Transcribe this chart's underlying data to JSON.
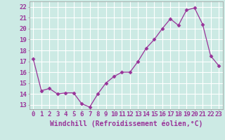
{
  "x": [
    0,
    1,
    2,
    3,
    4,
    5,
    6,
    7,
    8,
    9,
    10,
    11,
    12,
    13,
    14,
    15,
    16,
    17,
    18,
    19,
    20,
    21,
    22,
    23
  ],
  "y": [
    17.2,
    14.3,
    14.5,
    14.0,
    14.1,
    14.1,
    13.1,
    12.8,
    14.0,
    15.0,
    15.6,
    16.0,
    16.0,
    17.0,
    18.2,
    19.0,
    20.0,
    20.9,
    20.3,
    21.7,
    21.9,
    20.4,
    17.5,
    16.6
  ],
  "line_color": "#993399",
  "marker_color": "#993399",
  "bg_color": "#cceae4",
  "grid_color": "#ffffff",
  "ylabel_ticks": [
    13,
    14,
    15,
    16,
    17,
    18,
    19,
    20,
    21,
    22
  ],
  "ylim": [
    12.6,
    22.5
  ],
  "xlim": [
    -0.5,
    23.5
  ],
  "xlabel": "Windchill (Refroidissement éolien,°C)",
  "axis_fontsize": 6.5,
  "label_fontsize": 7.0
}
